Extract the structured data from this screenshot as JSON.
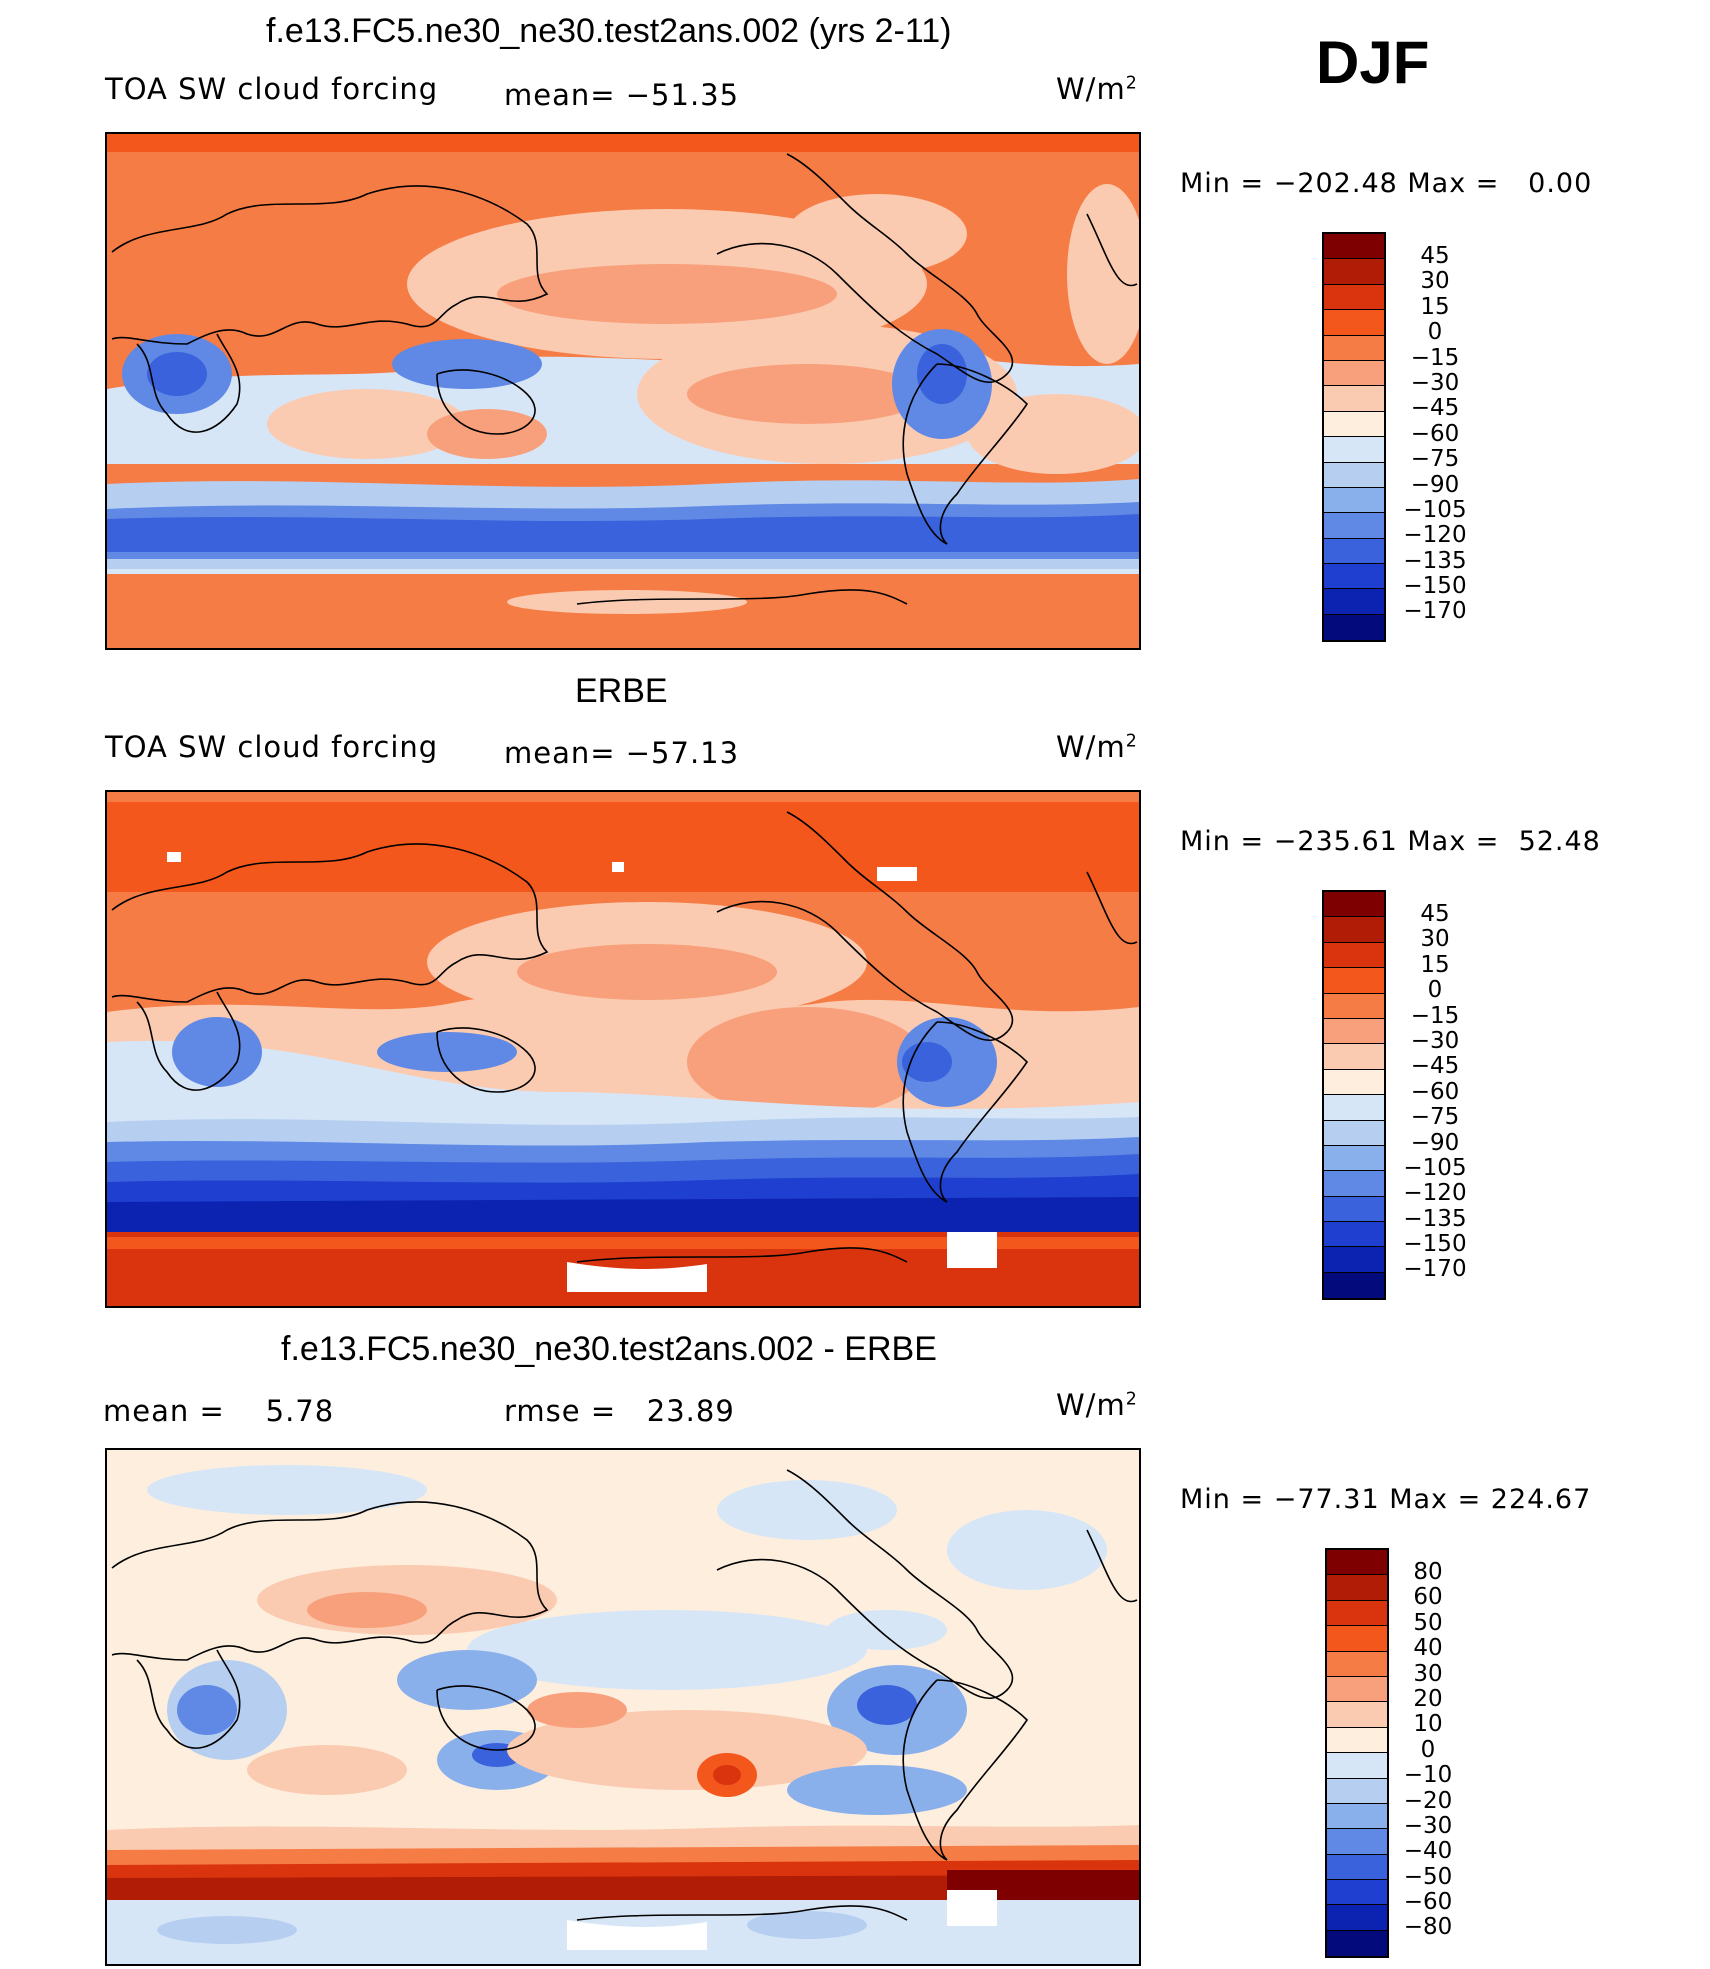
{
  "season": "DJF",
  "units_base": "W/m",
  "units_exp": "2",
  "panels": [
    {
      "title": "f.e13.FC5.ne30_ne30.test2ans.002 (yrs 2-11)",
      "left_label": "TOA SW cloud forcing",
      "center_label": "mean= −51.35",
      "minmax": "Min = −202.48 Max =   0.00",
      "colorbar_levels": [
        "45",
        "30",
        "15",
        "0",
        "−15",
        "−30",
        "−45",
        "−60",
        "−75",
        "−90",
        "−105",
        "−120",
        "−135",
        "−150",
        "−170"
      ],
      "colorbar_colors": [
        "#7f0000",
        "#b01c05",
        "#d9340e",
        "#f4571c",
        "#f67c45",
        "#f8a07c",
        "#fbcbb1",
        "#fdeede",
        "#d7e6f7",
        "#b6cff1",
        "#8ab0ec",
        "#5f89e5",
        "#3a62dc",
        "#1e3fd0",
        "#0c22b0",
        "#030a7c"
      ]
    },
    {
      "title": "ERBE",
      "left_label": "TOA SW cloud forcing",
      "center_label": "mean= −57.13",
      "minmax": "Min = −235.61 Max =  52.48",
      "colorbar_levels": [
        "45",
        "30",
        "15",
        "0",
        "−15",
        "−30",
        "−45",
        "−60",
        "−75",
        "−90",
        "−105",
        "−120",
        "−135",
        "−150",
        "−170"
      ],
      "colorbar_colors": [
        "#7f0000",
        "#b01c05",
        "#d9340e",
        "#f4571c",
        "#f67c45",
        "#f8a07c",
        "#fbcbb1",
        "#fdeede",
        "#d7e6f7",
        "#b6cff1",
        "#8ab0ec",
        "#5f89e5",
        "#3a62dc",
        "#1e3fd0",
        "#0c22b0",
        "#030a7c"
      ]
    },
    {
      "title": "f.e13.FC5.ne30_ne30.test2ans.002 - ERBE",
      "left_label": "mean =    5.78",
      "center_label": "rmse =   23.89",
      "minmax": "Min = −77.31 Max = 224.67",
      "colorbar_levels": [
        "80",
        "60",
        "50",
        "40",
        "30",
        "20",
        "10",
        "0",
        "−10",
        "−20",
        "−30",
        "−40",
        "−50",
        "−60",
        "−80"
      ],
      "colorbar_colors": [
        "#7f0000",
        "#b01c05",
        "#d9340e",
        "#f4571c",
        "#f67c45",
        "#f8a07c",
        "#fbcbb1",
        "#fdeede",
        "#d7e6f7",
        "#b6cff1",
        "#8ab0ec",
        "#5f89e5",
        "#3a62dc",
        "#1e3fd0",
        "#0c22b0",
        "#030a7c"
      ]
    }
  ]
}
